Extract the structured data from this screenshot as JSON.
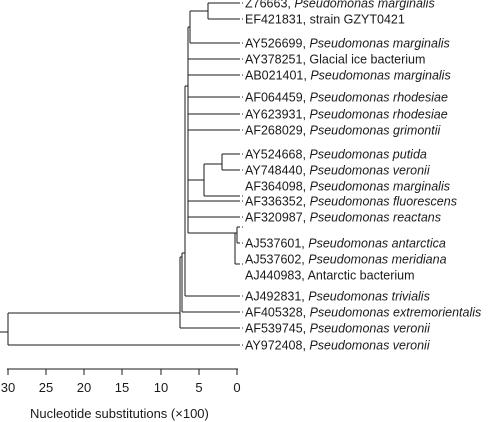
{
  "leaves": [
    {
      "acc": "Z76663",
      "name": "Pseudomonas marginalis",
      "italic": true
    },
    {
      "acc": "EF421831",
      "name": "strain GZYT0421",
      "italic": false
    },
    {
      "acc": "AY526699",
      "name": "Pseudomonas marginalis",
      "italic": true
    },
    {
      "acc": "AY378251",
      "name": "Glacial ice bacterium",
      "italic": false
    },
    {
      "acc": "AB021401",
      "name": "Pseudomonas marginalis",
      "italic": true
    },
    {
      "acc": "AF064459",
      "name": "Pseudomonas rhodesiae",
      "italic": true
    },
    {
      "acc": "AY623931",
      "name": "Pseudomonas rhodesiae",
      "italic": true
    },
    {
      "acc": "AF268029",
      "name": "Pseudomonas grimontii",
      "italic": true
    },
    {
      "acc": "AY524668",
      "name": "Pseudomonas putida",
      "italic": true
    },
    {
      "acc": "AY748440",
      "name": "Pseudomonas veronii",
      "italic": true
    },
    {
      "acc": "AF364098",
      "name": "Pseudomonas marginalis",
      "italic": true
    },
    {
      "acc": "AF336352",
      "name": "Pseudomonas fluorescens",
      "italic": true
    },
    {
      "acc": "AF320987",
      "name": "Pseudomonas reactans",
      "italic": true
    },
    {
      "acc": "AJ537601",
      "name": "Pseudomonas antarctica",
      "italic": true
    },
    {
      "acc": "AJ537602",
      "name": "Pseudomonas meridiana",
      "italic": true
    },
    {
      "acc": "AJ440983",
      "name": "Antarctic bacterium",
      "italic": false
    },
    {
      "acc": "AJ492831",
      "name": "Pseudomonas trivialis",
      "italic": true
    },
    {
      "acc": "AF405328",
      "name": "Pseudomonas extremorientalis",
      "italic": true
    },
    {
      "acc": "AF539745",
      "name": "Pseudomonas veronii",
      "italic": true
    },
    {
      "acc": "AY972408",
      "name": "Pseudomonas veronii",
      "italic": true
    }
  ],
  "axis": {
    "title": "Nucleotide substitutions (×100)",
    "ticks": [
      "30",
      "25",
      "20",
      "15",
      "10",
      "5",
      "0"
    ]
  },
  "colors": {
    "line": "#1a1a1a",
    "text": "#1a1a1a"
  }
}
